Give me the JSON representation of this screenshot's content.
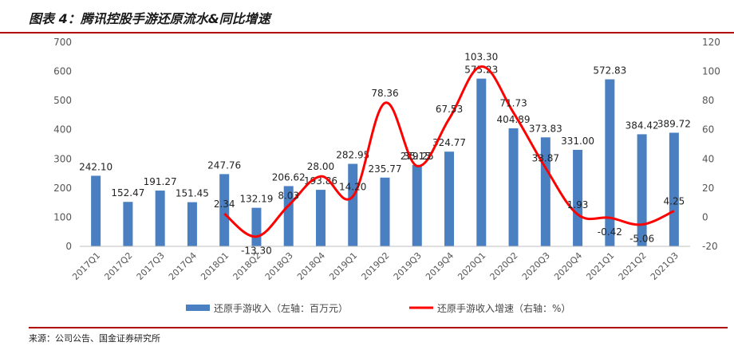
{
  "title": "图表 4：腾讯控股手游还原流水&同比增速",
  "source": "来源：公司公告、国金证券研究所",
  "colors": {
    "bar": "#4a7fc1",
    "line": "#ff0000",
    "rule": "#b00000"
  },
  "chart_data": {
    "type": "bar",
    "categories": [
      "2017Q1",
      "2017Q2",
      "2017Q3",
      "2017Q4",
      "2018Q1",
      "2018Q2",
      "2018Q3",
      "2018Q4",
      "2019Q1",
      "2019Q2",
      "2019Q3",
      "2019Q4",
      "2020Q1",
      "2020Q2",
      "2020Q3",
      "2020Q4",
      "2021Q1",
      "2021Q2",
      "2021Q3"
    ],
    "series": [
      {
        "name": "还原手游收入（左轴：百万元）",
        "type": "bar",
        "axis": "left",
        "values": [
          242.1,
          152.47,
          191.27,
          151.45,
          247.76,
          132.19,
          206.62,
          193.86,
          282.95,
          235.77,
          279.25,
          324.77,
          575.23,
          404.89,
          373.83,
          331.0,
          572.83,
          384.42,
          389.72
        ],
        "labels": [
          "242.10",
          "152.47",
          "191.27",
          "151.45",
          "247.76",
          "132.19",
          "206.62",
          "193.86",
          "282.95",
          "235.77",
          "279.25",
          "324.77",
          "575.23",
          "404.89",
          "373.83",
          "331.00",
          "572.83",
          "384.42",
          "389.72"
        ]
      },
      {
        "name": "还原手游收入增速（右轴：%）",
        "type": "line",
        "axis": "right",
        "values": [
          null,
          null,
          null,
          null,
          2.34,
          -13.3,
          8.03,
          28.0,
          14.2,
          78.36,
          35.15,
          67.53,
          103.3,
          71.73,
          33.87,
          1.93,
          -0.42,
          -5.06,
          4.25
        ],
        "labels": [
          "",
          "",
          "",
          "",
          "2.34",
          "-13.30",
          "8.03",
          "28.00",
          "14.20",
          "78.36",
          "35.15",
          "67.53",
          "103.30",
          "71.73",
          "33.87",
          "1.93",
          "-0.42",
          "-5.06",
          "4.25"
        ]
      }
    ],
    "left_axis": {
      "ylim": [
        0,
        700
      ],
      "ticks": [
        "0",
        "100",
        "200",
        "300",
        "400",
        "500",
        "600",
        "700"
      ]
    },
    "right_axis": {
      "ylim": [
        -20,
        120
      ],
      "ticks": [
        "-20",
        "0",
        "20",
        "40",
        "60",
        "80",
        "100",
        "120"
      ]
    },
    "grid": false,
    "legend_position": "bottom"
  }
}
